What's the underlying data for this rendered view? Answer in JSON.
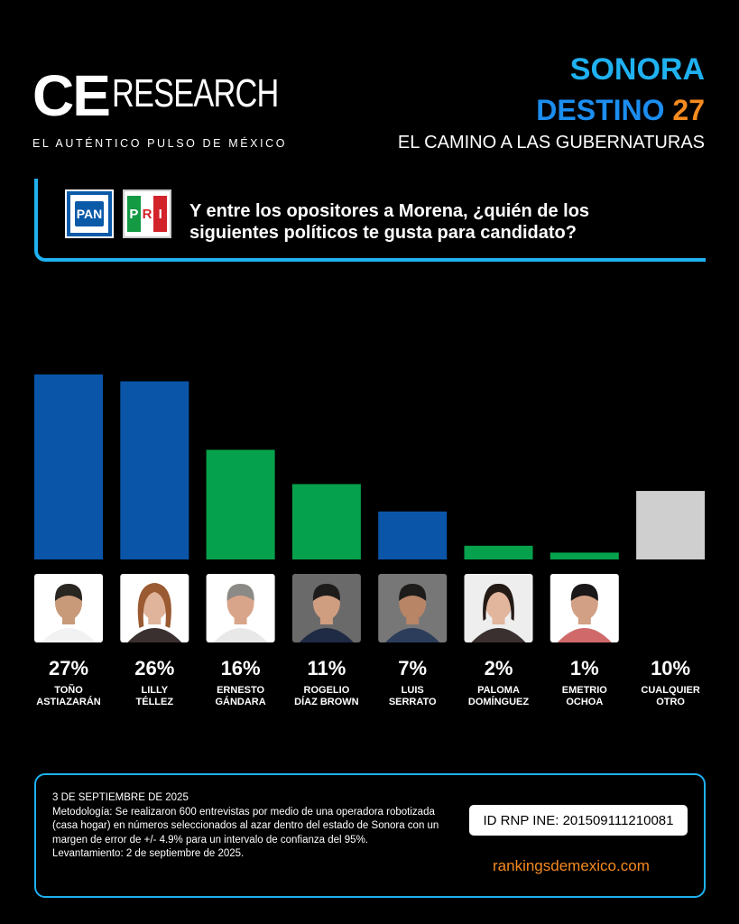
{
  "brand": {
    "logo_ce": "CE",
    "logo_research": "RESEARCH",
    "tagline": "EL AUTÉNTICO PULSO DE MÉXICO"
  },
  "header": {
    "line1": "SONORA",
    "line2_text": "DESTINO",
    "line2_num": "27",
    "line3": "EL CAMINO A LAS GUBERNATURAS"
  },
  "logos": {
    "pan": "PAN",
    "pri_letters": [
      "P",
      "R",
      "I"
    ]
  },
  "question": "Y entre los opositores a Morena, ¿quién de los siguientes políticos te gusta para candidato?",
  "colors": {
    "pan_blue": "#0a55a8",
    "green": "#06a14c",
    "gray": "#cfcfcf",
    "accent_cyan": "#1fb1f0",
    "accent_orange": "#f58a1f"
  },
  "chart_data": {
    "type": "bar",
    "categories": [
      "TOÑO ASTIAZARÁN",
      "LILLY TÉLLEZ",
      "ERNESTO GÁNDARA",
      "ROGELIO DÍAZ BROWN",
      "LUIS SERRATO",
      "PALOMA DOMÍNGUEZ",
      "EMETRIO OCHOA",
      "CUALQUIER OTRO"
    ],
    "name_lines": [
      [
        "TOÑO",
        "ASTIAZARÁN"
      ],
      [
        "LILLY",
        "TÉLLEZ"
      ],
      [
        "ERNESTO",
        "GÁNDARA"
      ],
      [
        "ROGELIO",
        "DÍAZ BROWN"
      ],
      [
        "LUIS",
        "SERRATO"
      ],
      [
        "PALOMA",
        "DOMÍNGUEZ"
      ],
      [
        "EMETRIO",
        "OCHOA"
      ],
      [
        "CUALQUIER",
        "OTRO"
      ]
    ],
    "values": [
      27,
      26,
      16,
      11,
      7,
      2,
      1,
      10
    ],
    "labels": [
      "27%",
      "26%",
      "16%",
      "11%",
      "7%",
      "2%",
      "1%",
      "10%"
    ],
    "bar_colors": [
      "#0a55a8",
      "#0a55a8",
      "#06a14c",
      "#06a14c",
      "#0a55a8",
      "#06a14c",
      "#06a14c",
      "#cfcfcf"
    ],
    "ylim": [
      0,
      27
    ],
    "xlabel": "",
    "ylabel": ""
  },
  "footer": {
    "date": "3 DE SEPTIEMBRE DE 2025",
    "methodology": "Metodología: Se realizaron 600 entrevistas por medio de una operadora robotizada (casa hogar) en números seleccionados al azar dentro del estado de Sonora con un margen de error de +/- 4.9% para un intervalo de confianza del 95%.",
    "fieldwork": "Levantamiento: 2 de septiembre de 2025.",
    "rnp_id": "ID RNP INE: 201509111210081",
    "website": "rankingsdemexico.com"
  }
}
